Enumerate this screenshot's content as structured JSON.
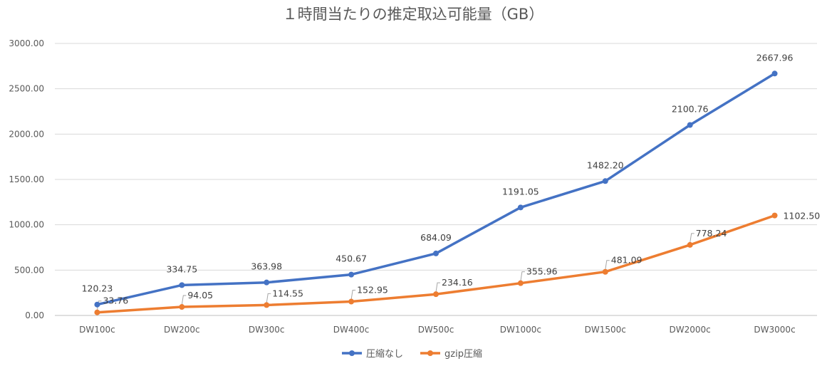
{
  "chart_data": {
    "type": "line",
    "title": "１時間当たりの推定取込可能量（GB）",
    "xlabel": "",
    "ylabel": "",
    "categories": [
      "DW100c",
      "DW200c",
      "DW300c",
      "DW400c",
      "DW500c",
      "DW1000c",
      "DW1500c",
      "DW2000c",
      "DW3000c"
    ],
    "ylim": [
      0,
      3000
    ],
    "yticks": [
      "0.00",
      "500.00",
      "1000.00",
      "1500.00",
      "2000.00",
      "2500.00",
      "3000.00"
    ],
    "grid": true,
    "legend_position": "bottom",
    "series": [
      {
        "name": "圧縮なし",
        "color": "#4472C4",
        "values": [
          120.23,
          334.75,
          363.98,
          450.67,
          684.09,
          1191.05,
          1482.2,
          2100.76,
          2667.96
        ],
        "labels": [
          "120.23",
          "334.75",
          "363.98",
          "450.67",
          "684.09",
          "1191.05",
          "1482.20",
          "2100.76",
          "2667.96"
        ]
      },
      {
        "name": "gzip圧縮",
        "color": "#ED7D31",
        "values": [
          33.76,
          94.05,
          114.55,
          152.95,
          234.16,
          355.96,
          481.09,
          778.24,
          1102.5
        ],
        "labels": [
          "33.76",
          "94.05",
          "114.55",
          "152.95",
          "234.16",
          "355.96",
          "481.09",
          "778.24",
          "1102.50"
        ]
      }
    ]
  }
}
